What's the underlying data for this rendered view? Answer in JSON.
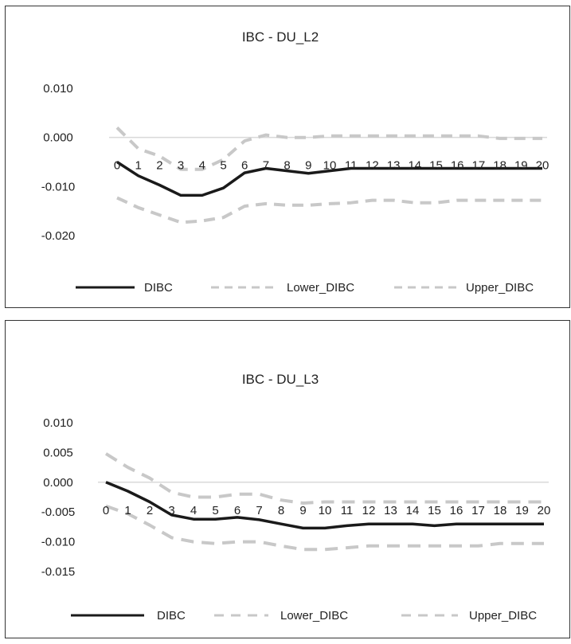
{
  "chart_data": [
    {
      "type": "line",
      "title": "IBC - DU_L2",
      "categories": [
        "0",
        "1",
        "2",
        "3",
        "4",
        "5",
        "6",
        "7",
        "8",
        "9",
        "10",
        "11",
        "12",
        "13",
        "14",
        "15",
        "16",
        "17",
        "18",
        "19",
        "20"
      ],
      "y_ticks": [
        "0.010",
        "0.000",
        "-0.010",
        "-0.020"
      ],
      "y_tick_values": [
        0.01,
        0.0,
        -0.01,
        -0.02
      ],
      "ylim": [
        -0.02,
        0.01
      ],
      "grid": false,
      "legend_position": "bottom",
      "series": [
        {
          "name": "DIBC",
          "color": "#1a1a1a",
          "style": "solid",
          "values": [
            -0.005,
            -0.0078,
            -0.0097,
            -0.0118,
            -0.0118,
            -0.0103,
            -0.0072,
            -0.0063,
            -0.0068,
            -0.0073,
            -0.0068,
            -0.0063,
            -0.0063,
            -0.0063,
            -0.0063,
            -0.0063,
            -0.0063,
            -0.0063,
            -0.0063,
            -0.0063,
            -0.0063
          ]
        },
        {
          "name": "Lower_DIBC",
          "color": "#c8c8c8",
          "style": "dashed",
          "values": [
            -0.0123,
            -0.0143,
            -0.0158,
            -0.0173,
            -0.017,
            -0.0163,
            -0.014,
            -0.0135,
            -0.0138,
            -0.0138,
            -0.0135,
            -0.0133,
            -0.0128,
            -0.0128,
            -0.0133,
            -0.0133,
            -0.0128,
            -0.0128,
            -0.0128,
            -0.0128,
            -0.0128
          ]
        },
        {
          "name": "Upper_DIBC",
          "color": "#c8c8c8",
          "style": "dashed",
          "values": [
            0.002,
            -0.0023,
            -0.0038,
            -0.0065,
            -0.0065,
            -0.0045,
            -0.0007,
            0.0005,
            0.0,
            0.0,
            0.0003,
            0.0003,
            0.0003,
            0.0003,
            0.0003,
            0.0003,
            0.0003,
            0.0003,
            -0.0002,
            -0.0002,
            -0.0002
          ]
        }
      ]
    },
    {
      "type": "line",
      "title": "IBC - DU_L3",
      "categories": [
        "0",
        "1",
        "2",
        "3",
        "4",
        "5",
        "6",
        "7",
        "8",
        "9",
        "10",
        "11",
        "12",
        "13",
        "14",
        "15",
        "16",
        "17",
        "18",
        "19",
        "20"
      ],
      "y_ticks": [
        "0.010",
        "0.005",
        "0.000",
        "-0.005",
        "-0.010",
        "-0.015"
      ],
      "y_tick_values": [
        0.01,
        0.005,
        0.0,
        -0.005,
        -0.01,
        -0.015
      ],
      "ylim": [
        -0.015,
        0.01
      ],
      "grid": false,
      "legend_position": "bottom",
      "series": [
        {
          "name": "DIBC",
          "color": "#1a1a1a",
          "style": "solid",
          "values": [
            0.0,
            -0.0015,
            -0.0033,
            -0.0055,
            -0.0062,
            -0.0062,
            -0.0059,
            -0.0063,
            -0.007,
            -0.0077,
            -0.0077,
            -0.0073,
            -0.007,
            -0.007,
            -0.007,
            -0.0073,
            -0.007,
            -0.007,
            -0.007,
            -0.007,
            -0.007
          ]
        },
        {
          "name": "Lower_DIBC",
          "color": "#c8c8c8",
          "style": "dashed",
          "values": [
            -0.004,
            -0.0053,
            -0.0072,
            -0.0093,
            -0.01,
            -0.0103,
            -0.01,
            -0.01,
            -0.0107,
            -0.0113,
            -0.0113,
            -0.011,
            -0.0107,
            -0.0107,
            -0.0107,
            -0.0107,
            -0.0107,
            -0.0107,
            -0.0103,
            -0.0103,
            -0.0103
          ]
        },
        {
          "name": "Upper_DIBC",
          "color": "#c8c8c8",
          "style": "dashed",
          "values": [
            0.0048,
            0.0025,
            0.0007,
            -0.0017,
            -0.0025,
            -0.0025,
            -0.002,
            -0.002,
            -0.003,
            -0.0035,
            -0.0033,
            -0.0033,
            -0.0033,
            -0.0033,
            -0.0033,
            -0.0033,
            -0.0033,
            -0.0033,
            -0.0033,
            -0.0033,
            -0.0033
          ]
        }
      ]
    }
  ]
}
